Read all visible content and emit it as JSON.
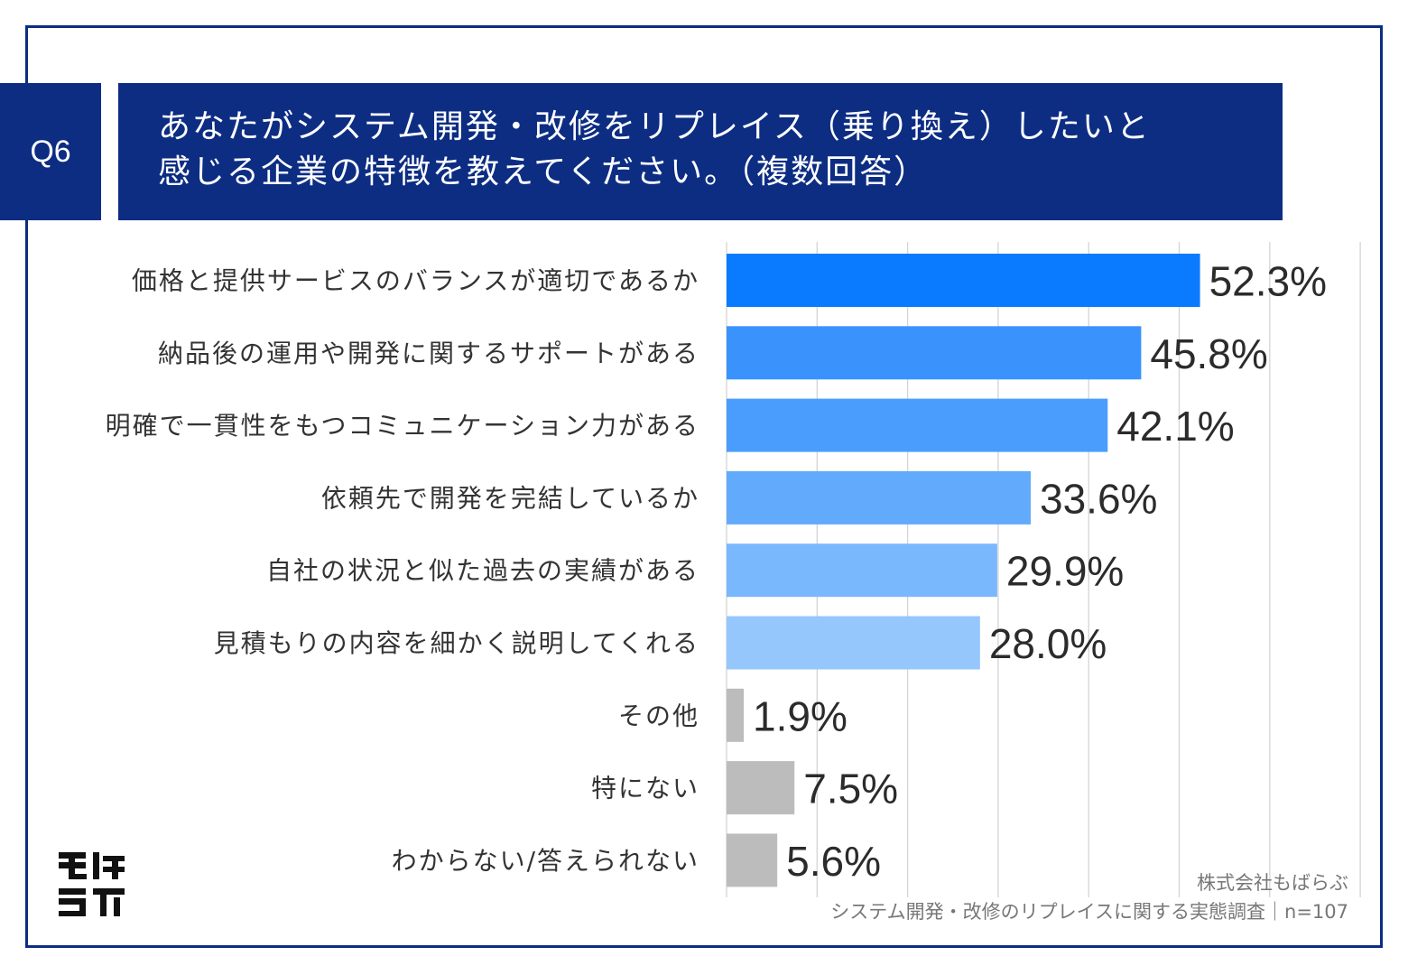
{
  "question": {
    "number": "Q6",
    "title_line1": "あなたがシステム開発・改修をリプレイス（乗り換え）したいと",
    "title_line2": "感じる企業の特徴を教えてください。（複数回答）"
  },
  "colors": {
    "navy": "#0d2d83",
    "bar_shades": [
      "#0a7bff",
      "#3a93fd",
      "#4a9dfc",
      "#62abfc",
      "#7ab8fd",
      "#95c7fd",
      "#bcbcbc",
      "#bcbcbc",
      "#bcbcbc"
    ],
    "grid": "#d4d4d4",
    "label_text": "#333333",
    "value_text": "#2b2b2b"
  },
  "chart_data": {
    "type": "bar",
    "orientation": "horizontal",
    "categories": [
      "価格と提供サービスのバランスが適切であるか",
      "納品後の運用や開発に関するサポートがある",
      "明確で一貫性をもつコミュニケーション力がある",
      "依頼先で開発を完結しているか",
      "自社の状況と似た過去の実績がある",
      "見積もりの内容を細かく説明してくれる",
      "その他",
      "特にない",
      "わからない/答えられない"
    ],
    "values": [
      52.3,
      45.8,
      42.1,
      33.6,
      29.9,
      28.0,
      1.9,
      7.5,
      5.6
    ],
    "value_labels": [
      "52.3%",
      "45.8%",
      "42.1%",
      "33.6%",
      "29.9%",
      "28.0%",
      "1.9%",
      "7.5%",
      "5.6%"
    ],
    "xlim": [
      0,
      70
    ],
    "grid": true
  },
  "logo": {
    "text_top": "もば",
    "text_bottom": "らぶ"
  },
  "source": {
    "company": "株式会社もばらぶ",
    "survey": "システム開発・改修のリプレイスに関する実態調査｜n=107"
  }
}
